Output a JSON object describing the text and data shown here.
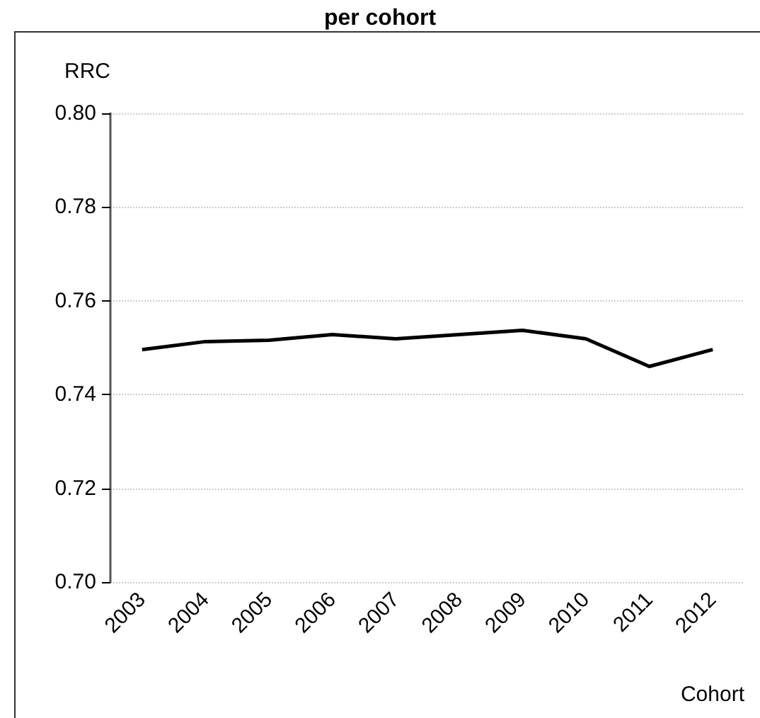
{
  "chart_data": {
    "type": "line",
    "title": "per cohort",
    "xlabel": "Cohort",
    "ylabel": "RRC",
    "categories": [
      "2003",
      "2004",
      "2005",
      "2006",
      "2007",
      "2008",
      "2009",
      "2010",
      "2011",
      "2012"
    ],
    "series": [
      {
        "color": "#000000",
        "values": [
          0.7496,
          0.7513,
          0.7516,
          0.7528,
          0.7519,
          0.7528,
          0.7537,
          0.7519,
          0.746,
          0.7496
        ]
      }
    ],
    "ylim": [
      0.7,
      0.8
    ],
    "yticks": [
      {
        "value": 0.7,
        "label": "0.70"
      },
      {
        "value": 0.72,
        "label": "0.72"
      },
      {
        "value": 0.74,
        "label": "0.74"
      },
      {
        "value": 0.76,
        "label": "0.76"
      },
      {
        "value": 0.78,
        "label": "0.78"
      },
      {
        "value": 0.8,
        "label": "0.80"
      }
    ],
    "grid": "y",
    "line_style": "solid"
  }
}
